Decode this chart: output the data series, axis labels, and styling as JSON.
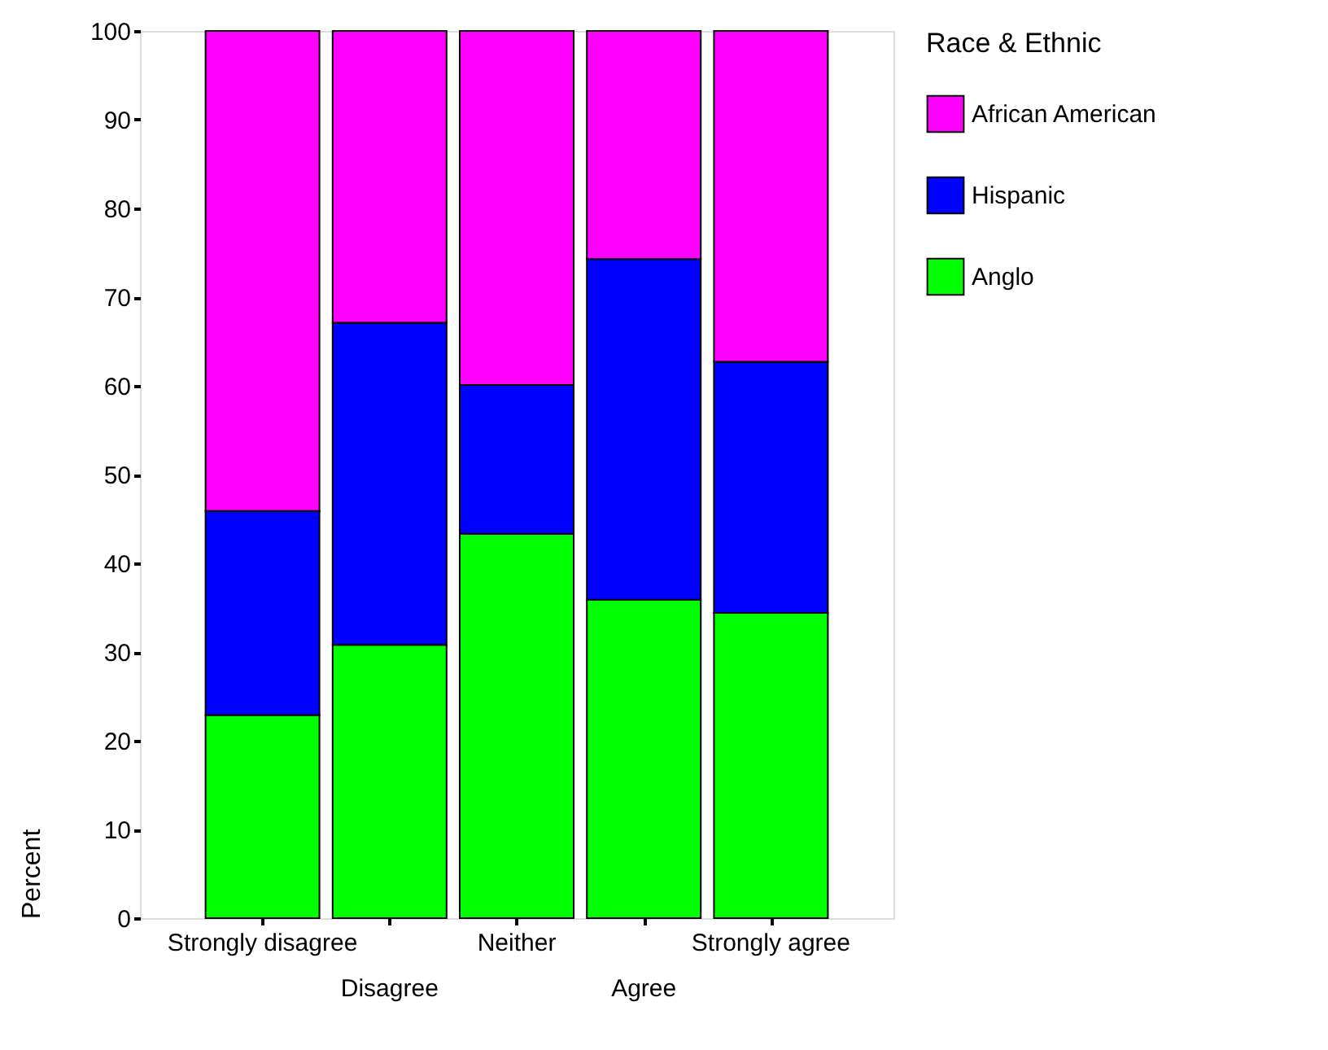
{
  "chart_data": {
    "type": "bar",
    "stacked": true,
    "ylabel": "Percent",
    "legend_title": "Race & Ethnic",
    "legend": "right",
    "grid": false,
    "categories": [
      "Strongly disagree",
      "Disagree",
      "Neither",
      "Agree",
      "Strongly agree"
    ],
    "series": [
      {
        "name": "Anglo",
        "color": "#00ff00",
        "values": [
          22.9,
          30.8,
          43.3,
          35.9,
          34.4
        ]
      },
      {
        "name": "Hispanic",
        "color": "#0000ff",
        "values": [
          23.0,
          36.3,
          16.8,
          38.4,
          28.3
        ]
      },
      {
        "name": "African American",
        "color": "#ff00ff",
        "values": [
          54.1,
          32.9,
          39.9,
          25.7,
          37.3
        ]
      }
    ],
    "ylim": [
      0,
      100
    ],
    "yticks": [
      0,
      10,
      20,
      30,
      40,
      50,
      60,
      70,
      80,
      90,
      100
    ]
  }
}
